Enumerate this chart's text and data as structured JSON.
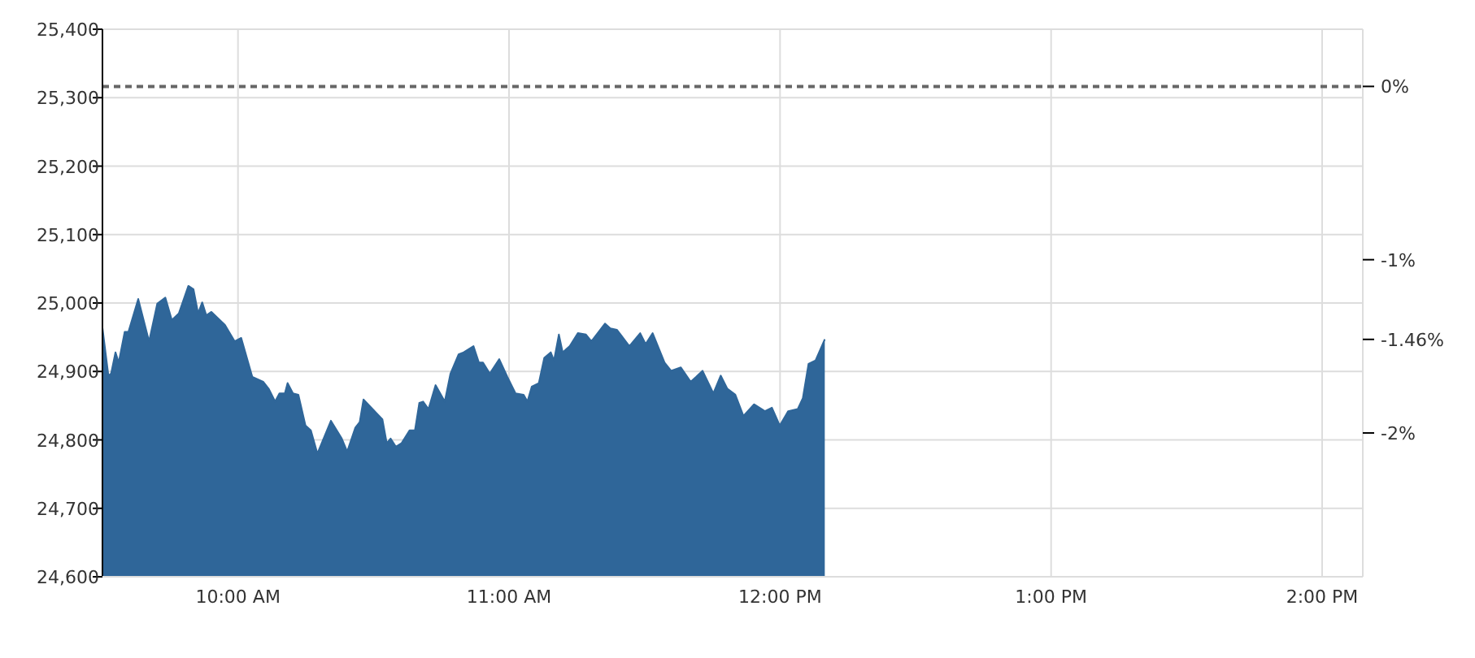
{
  "chart_data": {
    "type": "area",
    "grid": true,
    "x": [
      9.5,
      9.522,
      9.532,
      9.548,
      9.56,
      9.582,
      9.596,
      9.632,
      9.652,
      9.672,
      9.702,
      9.732,
      9.756,
      9.782,
      9.817,
      9.836,
      9.853,
      9.868,
      9.883,
      9.902,
      9.952,
      9.988,
      10.012,
      10.053,
      10.093,
      10.113,
      10.137,
      10.153,
      10.173,
      10.183,
      10.203,
      10.223,
      10.249,
      10.269,
      10.293,
      10.343,
      10.383,
      10.403,
      10.433,
      10.449,
      10.463,
      10.533,
      10.549,
      10.563,
      10.583,
      10.603,
      10.633,
      10.653,
      10.669,
      10.683,
      10.703,
      10.729,
      10.763,
      10.784,
      10.814,
      10.833,
      10.869,
      10.889,
      10.904,
      10.929,
      10.964,
      10.994,
      11.024,
      11.054,
      11.068,
      11.084,
      11.11,
      11.13,
      11.154,
      11.166,
      11.184,
      11.198,
      11.224,
      11.254,
      11.284,
      11.304,
      11.354,
      11.374,
      11.398,
      11.444,
      11.484,
      11.504,
      11.53,
      11.574,
      11.598,
      11.634,
      11.67,
      11.69,
      11.714,
      11.754,
      11.781,
      11.805,
      11.835,
      11.865,
      11.904,
      11.944,
      11.97,
      11.999,
      12.03,
      12.065,
      12.084,
      12.105,
      12.131,
      12.165
    ],
    "series": [
      {
        "color": "#2f6699",
        "values": [
          24964,
          24894,
          24897,
          24928,
          24913,
          24958,
          24958,
          25006,
          24975,
          24944,
          24999,
          25008,
          24975,
          24985,
          25025,
          25020,
          24985,
          25001,
          24982,
          24987,
          24968,
          24944,
          24949,
          24892,
          24885,
          24875,
          24856,
          24868,
          24868,
          24883,
          24868,
          24866,
          24821,
          24814,
          24780,
          24828,
          24802,
          24783,
          24818,
          24826,
          24859,
          24830,
          24795,
          24802,
          24790,
          24795,
          24814,
          24814,
          24854,
          24856,
          24845,
          24880,
          24856,
          24897,
          24925,
          24928,
          24937,
          24913,
          24913,
          24897,
          24918,
          24892,
          24868,
          24866,
          24856,
          24878,
          24883,
          24920,
          24928,
          24916,
          24954,
          24928,
          24937,
          24956,
          24954,
          24944,
          24970,
          24963,
          24961,
          24937,
          24956,
          24940,
          24956,
          24913,
          24901,
          24906,
          24885,
          24892,
          24901,
          24868,
          24894,
          24875,
          24866,
          24835,
          24852,
          24842,
          24847,
          24821,
          24842,
          24845,
          24861,
          24911,
          24916,
          24947
        ]
      }
    ],
    "xlim": [
      9.5,
      14.15
    ],
    "xticks": [
      {
        "value": 10,
        "label": "10:00 AM"
      },
      {
        "value": 11,
        "label": "11:00 AM"
      },
      {
        "value": 12,
        "label": "12:00 PM"
      },
      {
        "value": 13,
        "label": "1:00 PM"
      },
      {
        "value": 14,
        "label": "2:00 PM"
      }
    ],
    "ylim": [
      24600,
      25400
    ],
    "yticks": [
      {
        "value": 24600,
        "label": "24,600"
      },
      {
        "value": 24700,
        "label": "24,700"
      },
      {
        "value": 24800,
        "label": "24,800"
      },
      {
        "value": 24900,
        "label": "24,900"
      },
      {
        "value": 25000,
        "label": "25,000"
      },
      {
        "value": 25100,
        "label": "25,100"
      },
      {
        "value": 25200,
        "label": "25,200"
      },
      {
        "value": 25300,
        "label": "25,300"
      },
      {
        "value": 25400,
        "label": "25,400"
      }
    ],
    "y2lim": [
      -2.83,
      0.33
    ],
    "y2ticks": [
      {
        "value": 0,
        "label": "0%"
      },
      {
        "value": -1,
        "label": "-1%"
      },
      {
        "value": -1.46,
        "label": "-1.46%"
      },
      {
        "value": -2,
        "label": "-2%"
      }
    ],
    "ref_lines": [
      {
        "axis": "y2",
        "value": 0,
        "color": "#666666",
        "line_style": "dashed"
      }
    ]
  }
}
